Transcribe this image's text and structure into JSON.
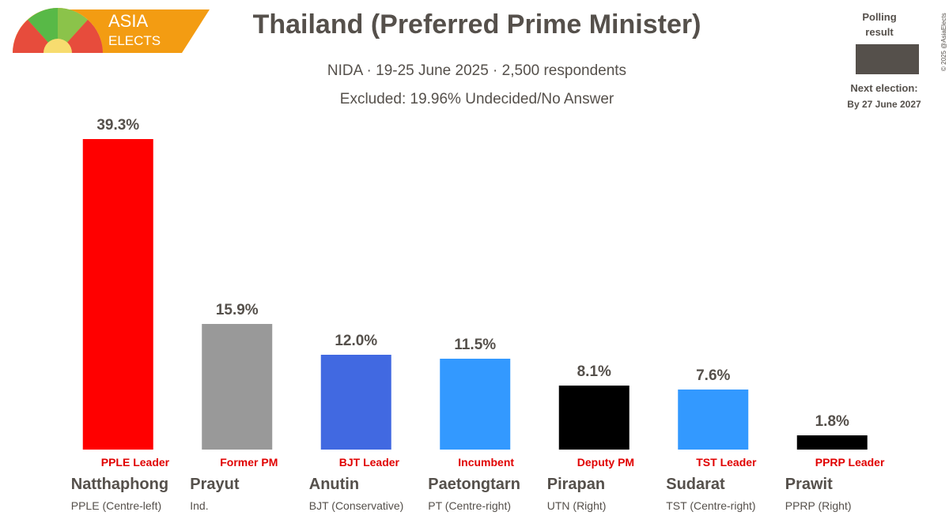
{
  "chart_data": {
    "type": "bar",
    "logo": {
      "top": "ASIA",
      "bottom": "ELECTS"
    },
    "title": "Thailand (Preferred Prime Minister)",
    "subtitle": "NIDA · 19-25 June 2025 · 2,500 respondents",
    "note": "Excluded: 19.96% Undecided/No Answer",
    "legend": {
      "label": "Polling result",
      "color": "#55504b"
    },
    "next_election": {
      "label": "Next election:",
      "date": "By 27 June 2027"
    },
    "copyright": "© 2025 @AsiaElects",
    "categories": [
      "Natthaphong",
      "Prayut",
      "Anutin",
      "Paetongtarn",
      "Pirapan",
      "Sudarat",
      "Prawit"
    ],
    "parties": [
      "PPLE (Centre-left)",
      "Ind.",
      "BJT (Conservative)",
      "PT (Centre-right)",
      "UTN (Right)",
      "TST (Centre-right)",
      "PPRP (Right)"
    ],
    "roles": [
      "PPLE Leader",
      "Former PM",
      "BJT Leader",
      "Incumbent",
      "Deputy PM",
      "TST Leader",
      "PPRP Leader"
    ],
    "values": [
      39.3,
      15.9,
      12.0,
      11.5,
      8.1,
      7.6,
      1.8
    ],
    "value_labels": [
      "39.3%",
      "15.9%",
      "12.0%",
      "11.5%",
      "8.1%",
      "7.6%",
      "1.8%"
    ],
    "colors": [
      "#ff0000",
      "#999999",
      "#4169e1",
      "#3399ff",
      "#000000",
      "#3399ff",
      "#000000"
    ],
    "ylim": [
      0,
      40
    ]
  }
}
